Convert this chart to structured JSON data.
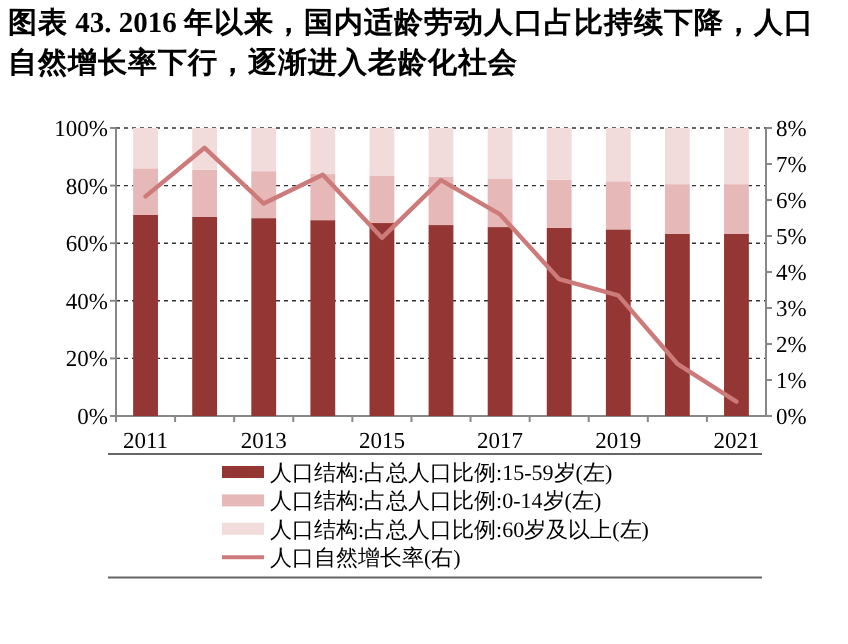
{
  "chart_data": {
    "type": "bar",
    "title": "图表 43. 2016 年以来，国内适龄劳动人口占比持续下降，人口自然增长率下行，逐渐进入老龄化社会",
    "categories": [
      "2011",
      null,
      "2013",
      null,
      "2015",
      null,
      "2017",
      null,
      "2019",
      null,
      "2021"
    ],
    "stacked": true,
    "grid": "y",
    "legend": "bottom",
    "series": [
      {
        "name": "人口结构:占总人口比例:15-59岁(左)",
        "color": "#943634",
        "values": [
          69.8,
          69.2,
          68.7,
          68,
          67,
          66.3,
          65.6,
          65.3,
          64.8,
          63.3,
          63.3
        ]
      },
      {
        "name": "人口结构:占总人口比例:0-14岁(左)",
        "color": "#e6b8b7",
        "values": [
          16.2,
          16.3,
          16.3,
          16,
          16.5,
          16.7,
          16.9,
          16.7,
          16.7,
          17.2,
          17.2
        ]
      },
      {
        "name": "人口结构:占总人口比例:60岁及以上(左)",
        "color": "#f2dcdb",
        "values": [
          14,
          14.5,
          15,
          16,
          16.5,
          17,
          17.5,
          18,
          18.5,
          19.5,
          19.5
        ]
      },
      {
        "name": "人口自然增长率(右)",
        "type": "line",
        "axis": "y2",
        "color": "#cd7a7a",
        "values": [
          6.1,
          7.45,
          5.9,
          6.7,
          4.95,
          6.55,
          5.6,
          3.8,
          3.35,
          1.45,
          0.4
        ]
      }
    ],
    "ylim": [
      0,
      100
    ],
    "yticks": [
      {
        "value": 0,
        "label": "0%"
      },
      {
        "value": 20,
        "label": "20%"
      },
      {
        "value": 40,
        "label": "40%"
      },
      {
        "value": 60,
        "label": "60%"
      },
      {
        "value": 80,
        "label": "80%"
      },
      {
        "value": 100,
        "label": "100%"
      }
    ],
    "y2lim": [
      0,
      8
    ],
    "y2ticks": [
      {
        "value": 0,
        "label": "0%"
      },
      {
        "value": 1,
        "label": "1%"
      },
      {
        "value": 2,
        "label": "2%"
      },
      {
        "value": 3,
        "label": "3%"
      },
      {
        "value": 4,
        "label": "4%"
      },
      {
        "value": 5,
        "label": "5%"
      },
      {
        "value": 6,
        "label": "6%"
      },
      {
        "value": 7,
        "label": "7%"
      },
      {
        "value": 8,
        "label": "8%"
      }
    ]
  }
}
